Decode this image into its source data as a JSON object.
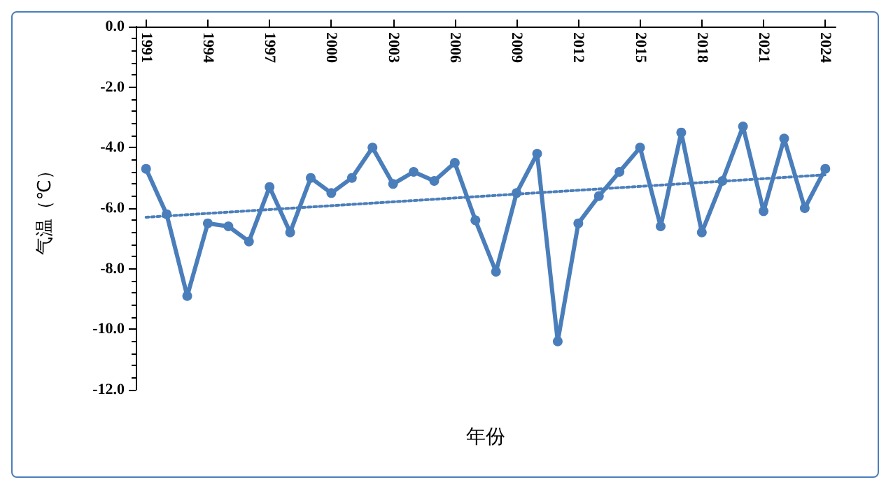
{
  "chart_data": {
    "type": "line",
    "xlabel": "年份",
    "ylabel": "气温（℃）",
    "x": [
      1991,
      1992,
      1993,
      1994,
      1995,
      1996,
      1997,
      1998,
      1999,
      2000,
      2001,
      2002,
      2003,
      2004,
      2005,
      2006,
      2007,
      2008,
      2009,
      2010,
      2011,
      2012,
      2013,
      2014,
      2015,
      2016,
      2017,
      2018,
      2019,
      2020,
      2021,
      2022,
      2023,
      2024
    ],
    "series": [
      {
        "color": "#4a7ebb",
        "marker": "circle",
        "line_style": "solid",
        "values": [
          -4.7,
          -6.2,
          -8.9,
          -6.5,
          -6.6,
          -7.1,
          -5.3,
          -6.8,
          -5.0,
          -5.5,
          -5.0,
          -4.0,
          -5.2,
          -4.8,
          -5.1,
          -4.5,
          -6.4,
          -8.1,
          -5.5,
          -4.2,
          -10.4,
          -6.5,
          -5.6,
          -4.8,
          -4.0,
          -6.6,
          -3.5,
          -6.8,
          -5.1,
          -3.3,
          -6.1,
          -3.7,
          -6.0,
          -4.7
        ]
      },
      {
        "type": "line",
        "color": "#4a7ebb",
        "marker": "none",
        "line_style": "dotted",
        "x": [
          1991,
          2024
        ],
        "values": [
          -6.3,
          -4.9
        ]
      }
    ],
    "xlim": [
      1990.5,
      2024.5
    ],
    "xticks": [
      1991,
      1994,
      1997,
      2000,
      2003,
      2006,
      2009,
      2012,
      2015,
      2018,
      2021,
      2024
    ],
    "ylim": [
      -12,
      0
    ],
    "yticks": [
      {
        "value": 0,
        "label": "0.0"
      },
      {
        "value": -2,
        "label": "-2.0"
      },
      {
        "value": -4,
        "label": "-4.0"
      },
      {
        "value": -6,
        "label": "-6.0"
      },
      {
        "value": -8,
        "label": "-8.0"
      },
      {
        "value": -10,
        "label": "-10.0"
      },
      {
        "value": -12,
        "label": "-12.0"
      }
    ],
    "grid": false
  }
}
